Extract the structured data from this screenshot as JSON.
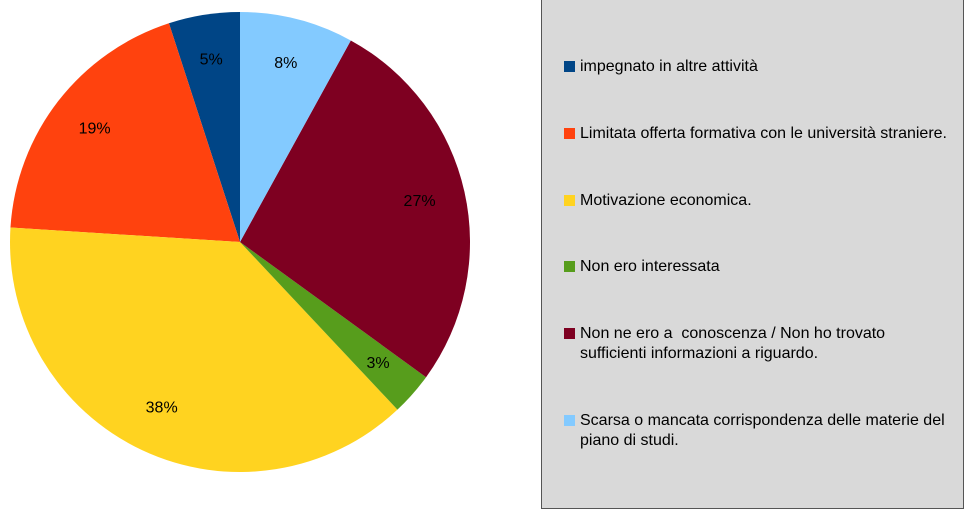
{
  "chart_data": {
    "type": "pie",
    "categories": [
      "impegnato in altre attività",
      "Limitata offerta formativa con le università straniere.",
      "Motivazione economica.",
      "Non ero interessata",
      "Non ne ero a  conoscenza / Non ho trovato sufficienti informazioni a riguardo.",
      "Scarsa o mancata corrispondenza delle materie del piano di studi."
    ],
    "values": [
      5,
      19,
      38,
      3,
      27,
      8
    ],
    "value_labels": [
      "5%",
      "19%",
      "38%",
      "3%",
      "27%",
      "8%"
    ],
    "colors": [
      "#004586",
      "#ff420e",
      "#ffd320",
      "#579d1c",
      "#7e0021",
      "#83caff"
    ],
    "legend": "right"
  }
}
